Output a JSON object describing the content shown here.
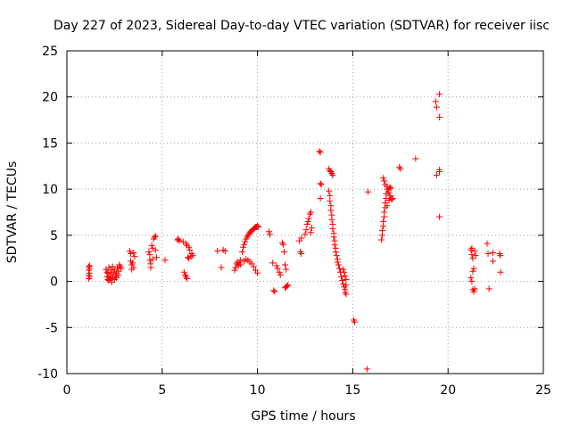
{
  "chart_data": {
    "type": "scatter",
    "title": "Day 227 of 2023, Sidereal Day-to-day VTEC variation (SDTVAR) for receiver iisc",
    "xlabel": "GPS time / hours",
    "ylabel": "SDTVAR / TECUs",
    "xlim": [
      0,
      25
    ],
    "ylim": [
      -10,
      25
    ],
    "x_ticks": [
      0,
      5,
      10,
      15,
      20,
      25
    ],
    "y_ticks": [
      -10,
      -5,
      0,
      5,
      10,
      15,
      20,
      25
    ],
    "x_tick_labels": [
      "0",
      "5",
      "10",
      "15",
      "20",
      "25"
    ],
    "y_tick_labels": [
      "-10",
      "-5",
      "0",
      "5",
      "10",
      "15",
      "20",
      "25"
    ],
    "grid": true,
    "marker": "+",
    "color": "#ff0000",
    "series": [
      {
        "name": "SDTVAR",
        "points": [
          [
            1.15,
            1.6
          ],
          [
            1.15,
            1.2
          ],
          [
            1.15,
            0.7
          ],
          [
            1.15,
            0.3
          ],
          [
            1.18,
            1.4
          ],
          [
            1.18,
            0.9
          ],
          [
            1.2,
            1.7
          ],
          [
            1.2,
            0.5
          ],
          [
            2.05,
            1.3
          ],
          [
            2.1,
            1.0
          ],
          [
            2.1,
            0.5
          ],
          [
            2.15,
            0.2
          ],
          [
            2.15,
            0.9
          ],
          [
            2.2,
            1.5
          ],
          [
            2.2,
            0.1
          ],
          [
            2.25,
            0.6
          ],
          [
            2.3,
            1.2
          ],
          [
            2.3,
            0.3
          ],
          [
            2.35,
            -0.1
          ],
          [
            2.35,
            0.8
          ],
          [
            2.4,
            1.6
          ],
          [
            2.4,
            0.4
          ],
          [
            2.45,
            1.0
          ],
          [
            2.5,
            0.2
          ],
          [
            2.5,
            1.3
          ],
          [
            2.55,
            0.6
          ],
          [
            2.6,
            0.9
          ],
          [
            2.6,
            0.4
          ],
          [
            2.65,
            1.5
          ],
          [
            2.7,
            0.7
          ],
          [
            2.7,
            1.1
          ],
          [
            2.75,
            1.8
          ],
          [
            2.8,
            1.6
          ],
          [
            2.85,
            1.4
          ],
          [
            3.3,
            3.3
          ],
          [
            3.35,
            3.0
          ],
          [
            3.35,
            2.2
          ],
          [
            3.4,
            1.8
          ],
          [
            3.4,
            1.3
          ],
          [
            3.45,
            2.0
          ],
          [
            3.5,
            3.1
          ],
          [
            3.5,
            1.5
          ],
          [
            3.55,
            2.7
          ],
          [
            4.3,
            3.2
          ],
          [
            4.35,
            2.9
          ],
          [
            4.35,
            2.3
          ],
          [
            4.4,
            1.9
          ],
          [
            4.4,
            1.5
          ],
          [
            4.45,
            3.9
          ],
          [
            4.5,
            3.6
          ],
          [
            4.5,
            2.4
          ],
          [
            4.55,
            4.6
          ],
          [
            4.6,
            4.8
          ],
          [
            4.65,
            4.9
          ],
          [
            4.65,
            3.4
          ],
          [
            4.7,
            2.6
          ],
          [
            5.15,
            2.3
          ],
          [
            5.8,
            4.5
          ],
          [
            5.85,
            4.6
          ],
          [
            5.9,
            4.4
          ],
          [
            6.1,
            4.3
          ],
          [
            6.15,
            1.0
          ],
          [
            6.2,
            0.7
          ],
          [
            6.25,
            4.1
          ],
          [
            6.25,
            0.5
          ],
          [
            6.3,
            0.3
          ],
          [
            6.3,
            3.9
          ],
          [
            6.35,
            2.6
          ],
          [
            6.4,
            3.7
          ],
          [
            6.4,
            2.5
          ],
          [
            6.45,
            3.4
          ],
          [
            6.5,
            2.7
          ],
          [
            6.55,
            3.0
          ],
          [
            6.6,
            2.8
          ],
          [
            7.9,
            3.3
          ],
          [
            8.1,
            1.5
          ],
          [
            8.2,
            3.4
          ],
          [
            8.3,
            3.3
          ],
          [
            8.8,
            1.2
          ],
          [
            8.85,
            1.5
          ],
          [
            8.9,
            1.9
          ],
          [
            8.95,
            2.1
          ],
          [
            9.0,
            1.7
          ],
          [
            9.05,
            2.0
          ],
          [
            9.1,
            1.8
          ],
          [
            9.1,
            2.3
          ],
          [
            9.2,
            3.2
          ],
          [
            9.25,
            3.7
          ],
          [
            9.3,
            4.0
          ],
          [
            9.35,
            4.3
          ],
          [
            9.4,
            4.6
          ],
          [
            9.45,
            4.8
          ],
          [
            9.5,
            5.0
          ],
          [
            9.55,
            5.1
          ],
          [
            9.6,
            5.3
          ],
          [
            9.65,
            5.4
          ],
          [
            9.7,
            5.5
          ],
          [
            9.75,
            5.6
          ],
          [
            9.8,
            5.7
          ],
          [
            9.85,
            5.8
          ],
          [
            9.9,
            5.9
          ],
          [
            9.95,
            5.9
          ],
          [
            10.0,
            6.0
          ],
          [
            10.05,
            5.9
          ],
          [
            9.3,
            2.2
          ],
          [
            9.4,
            2.4
          ],
          [
            9.5,
            2.3
          ],
          [
            9.6,
            2.1
          ],
          [
            9.7,
            1.9
          ],
          [
            9.8,
            1.6
          ],
          [
            9.9,
            1.2
          ],
          [
            10.0,
            0.9
          ],
          [
            10.6,
            5.4
          ],
          [
            10.65,
            5.1
          ],
          [
            10.8,
            2.0
          ],
          [
            10.85,
            -1.0
          ],
          [
            10.9,
            -1.1
          ],
          [
            11.0,
            1.7
          ],
          [
            11.05,
            1.4
          ],
          [
            11.15,
            1.0
          ],
          [
            11.2,
            0.7
          ],
          [
            11.3,
            4.2
          ],
          [
            11.35,
            4.0
          ],
          [
            11.4,
            3.2
          ],
          [
            11.45,
            1.8
          ],
          [
            11.5,
            1.3
          ],
          [
            11.5,
            -0.6
          ],
          [
            11.55,
            -0.5
          ],
          [
            11.6,
            -0.4
          ],
          [
            11.45,
            -0.7
          ],
          [
            12.2,
            4.4
          ],
          [
            12.25,
            3.2
          ],
          [
            12.3,
            4.7
          ],
          [
            12.3,
            3.0
          ],
          [
            12.5,
            5.1
          ],
          [
            12.55,
            5.6
          ],
          [
            12.6,
            6.2
          ],
          [
            12.65,
            6.5
          ],
          [
            12.7,
            6.8
          ],
          [
            12.75,
            7.3
          ],
          [
            12.8,
            7.5
          ],
          [
            12.8,
            5.3
          ],
          [
            12.85,
            5.8
          ],
          [
            13.25,
            14.1
          ],
          [
            13.3,
            14.0
          ],
          [
            13.3,
            10.6
          ],
          [
            13.35,
            10.5
          ],
          [
            13.3,
            9.0
          ],
          [
            13.75,
            12.2
          ],
          [
            13.8,
            12.0
          ],
          [
            13.85,
            11.9
          ],
          [
            13.9,
            11.7
          ],
          [
            13.95,
            11.5
          ],
          [
            13.75,
            9.8
          ],
          [
            13.8,
            9.3
          ],
          [
            13.8,
            8.7
          ],
          [
            13.85,
            8.2
          ],
          [
            13.85,
            7.7
          ],
          [
            13.9,
            7.2
          ],
          [
            13.9,
            6.7
          ],
          [
            13.95,
            6.2
          ],
          [
            13.95,
            5.7
          ],
          [
            14.0,
            5.2
          ],
          [
            14.0,
            4.8
          ],
          [
            14.05,
            4.4
          ],
          [
            14.05,
            4.0
          ],
          [
            14.1,
            3.6
          ],
          [
            14.1,
            3.2
          ],
          [
            14.15,
            2.8
          ],
          [
            14.2,
            2.4
          ],
          [
            14.2,
            2.1
          ],
          [
            14.25,
            1.8
          ],
          [
            14.3,
            1.4
          ],
          [
            14.35,
            1.0
          ],
          [
            14.4,
            0.5
          ],
          [
            14.45,
            0.1
          ],
          [
            14.5,
            -0.3
          ],
          [
            14.55,
            -0.6
          ],
          [
            14.6,
            -0.9
          ],
          [
            14.6,
            -1.2
          ],
          [
            14.65,
            -1.4
          ],
          [
            14.5,
            1.3
          ],
          [
            14.55,
            1.0
          ],
          [
            14.6,
            0.6
          ],
          [
            14.65,
            0.2
          ],
          [
            14.65,
            -0.4
          ],
          [
            15.05,
            -4.2
          ],
          [
            15.1,
            -4.4
          ],
          [
            15.75,
            -9.5
          ],
          [
            15.8,
            9.7
          ],
          [
            16.5,
            4.5
          ],
          [
            16.55,
            5.0
          ],
          [
            16.55,
            5.5
          ],
          [
            16.6,
            6.0
          ],
          [
            16.6,
            6.5
          ],
          [
            16.65,
            7.0
          ],
          [
            16.65,
            7.5
          ],
          [
            16.7,
            8.0
          ],
          [
            16.7,
            8.5
          ],
          [
            16.75,
            9.0
          ],
          [
            16.75,
            9.5
          ],
          [
            16.8,
            10.0
          ],
          [
            16.6,
            11.2
          ],
          [
            16.65,
            10.9
          ],
          [
            16.7,
            10.5
          ],
          [
            16.8,
            10.3
          ],
          [
            16.85,
            10.0
          ],
          [
            16.9,
            9.6
          ],
          [
            16.95,
            9.3
          ],
          [
            17.0,
            9.0
          ],
          [
            17.05,
            8.9
          ],
          [
            17.1,
            9.0
          ],
          [
            16.8,
            8.2
          ],
          [
            16.9,
            8.8
          ],
          [
            16.95,
            10.2
          ],
          [
            17.0,
            10.1
          ],
          [
            17.45,
            12.4
          ],
          [
            17.5,
            12.2
          ],
          [
            18.3,
            13.3
          ],
          [
            19.35,
            19.5
          ],
          [
            19.4,
            18.9
          ],
          [
            19.55,
            20.3
          ],
          [
            19.55,
            17.8
          ],
          [
            19.4,
            11.5
          ],
          [
            19.55,
            11.9
          ],
          [
            19.55,
            12.1
          ],
          [
            19.55,
            7.0
          ],
          [
            21.2,
            3.4
          ],
          [
            21.25,
            3.6
          ],
          [
            21.25,
            2.9
          ],
          [
            21.3,
            2.5
          ],
          [
            21.3,
            1.1
          ],
          [
            21.2,
            0.4
          ],
          [
            21.25,
            0.0
          ],
          [
            21.3,
            -0.9
          ],
          [
            21.35,
            -1.1
          ],
          [
            21.4,
            -0.8
          ],
          [
            21.35,
            1.4
          ],
          [
            21.4,
            3.3
          ],
          [
            21.45,
            2.8
          ],
          [
            22.05,
            4.1
          ],
          [
            22.1,
            3.0
          ],
          [
            22.15,
            -0.8
          ],
          [
            22.35,
            2.2
          ],
          [
            22.35,
            3.1
          ],
          [
            22.7,
            3.0
          ],
          [
            22.75,
            2.8
          ],
          [
            22.75,
            1.0
          ]
        ]
      }
    ]
  }
}
